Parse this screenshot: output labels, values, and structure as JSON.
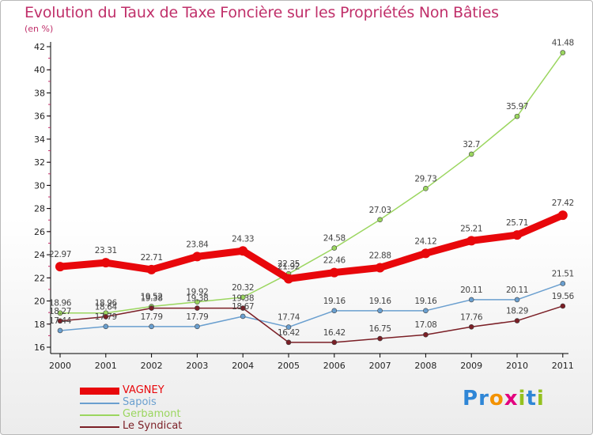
{
  "title": "Evolution du Taux de Taxe Foncière sur les Propriétés Non Bâties",
  "unit": "(en %)",
  "brand": {
    "letters": [
      "P",
      "r",
      "o",
      "x",
      "i",
      "t",
      "i"
    ],
    "colors": [
      "#2f86d6",
      "#2f86d6",
      "#f39200",
      "#e3007e",
      "#94c11f",
      "#2f86d6",
      "#94c11f"
    ]
  },
  "chart_data": {
    "type": "line",
    "x": [
      "2000",
      "2001",
      "2002",
      "2003",
      "2004",
      "2005",
      "2006",
      "2007",
      "2008",
      "2009",
      "2010",
      "2011"
    ],
    "ylim": [
      16,
      42
    ],
    "yticks": [
      "16",
      "18",
      "20",
      "22",
      "24",
      "26",
      "28",
      "30",
      "32",
      "34",
      "36",
      "38",
      "40",
      "42"
    ],
    "series": [
      {
        "name": "VAGNEY",
        "color": "#e8070b",
        "values": [
          22.97,
          23.31,
          22.71,
          23.84,
          24.33,
          21.92,
          22.46,
          22.88,
          24.12,
          25.21,
          25.71,
          27.42
        ],
        "labels": [
          "22.97",
          "23.31",
          "22.71",
          "23.84",
          "24.33",
          "21.92",
          "22.46",
          "22.88",
          "24.12",
          "25.21",
          "25.71",
          "27.42"
        ]
      },
      {
        "name": "Sapois",
        "color": "#6a9fcf",
        "values": [
          17.44,
          17.79,
          17.79,
          17.79,
          18.67,
          17.74,
          19.16,
          19.16,
          19.16,
          20.11,
          20.11,
          21.51
        ],
        "labels": [
          "17.44",
          "17.79",
          "17.79",
          "17.79",
          "18.67",
          "17.74",
          "19.16",
          "19.16",
          "19.16",
          "20.11",
          "20.11",
          "21.51"
        ]
      },
      {
        "name": "Gerbamont",
        "color": "#9bd65f",
        "values": [
          18.96,
          18.96,
          19.52,
          19.92,
          20.32,
          22.35,
          24.58,
          27.03,
          29.73,
          32.7,
          35.97,
          41.48
        ],
        "labels": [
          "18.96",
          "18.96",
          "19.52",
          "19.92",
          "20.32",
          "22.35",
          "24.58",
          "27.03",
          "29.73",
          "32.7",
          "35.97",
          "41.48"
        ]
      },
      {
        "name": "Le Syndicat",
        "color": "#7b1f26",
        "values": [
          18.27,
          18.64,
          19.38,
          19.38,
          19.38,
          16.42,
          16.42,
          16.75,
          17.08,
          17.76,
          18.29,
          19.56
        ],
        "labels": [
          "18.27",
          "18.64",
          "19.38",
          "19.38",
          "19.38",
          "16.42",
          "16.42",
          "16.75",
          "17.08",
          "17.76",
          "18.29",
          "19.56"
        ]
      }
    ],
    "legend_position": "bottom-left",
    "grid": false
  }
}
